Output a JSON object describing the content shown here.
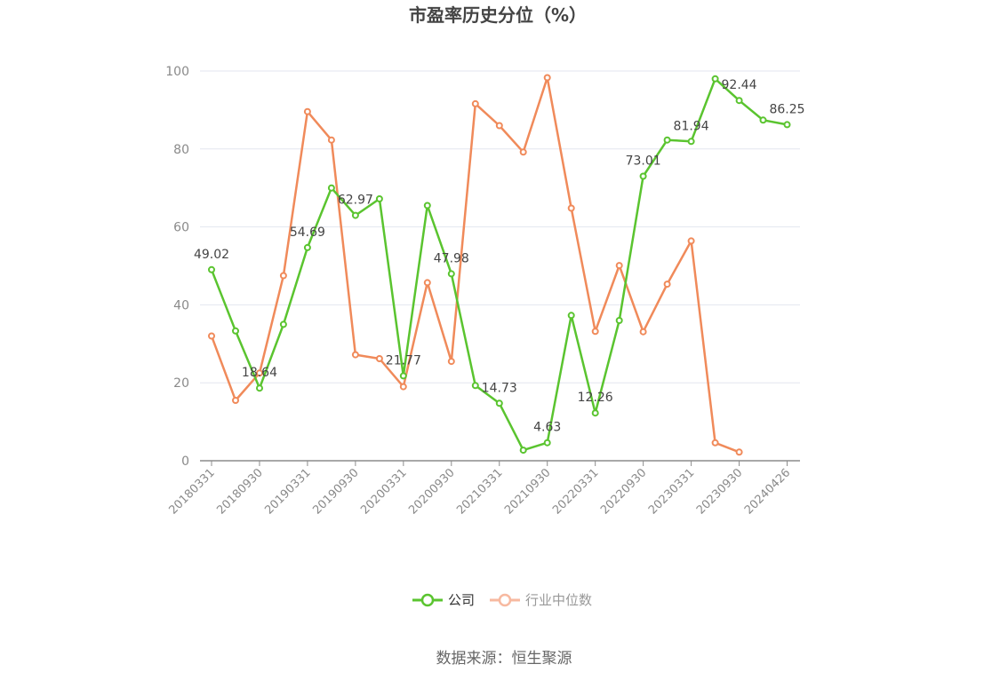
{
  "chart_data": {
    "type": "line",
    "title": "市盈率历史分位（%）",
    "xlabel": "",
    "ylabel": "",
    "ylim": [
      0,
      100
    ],
    "yticks": [
      0,
      20,
      40,
      60,
      80,
      100
    ],
    "grid": true,
    "legend_position": "bottom-center",
    "x": [
      "20180331",
      "20180630",
      "20180930",
      "20181231",
      "20190331",
      "20190630",
      "20190930",
      "20191231",
      "20200331",
      "20200630",
      "20200930",
      "20201231",
      "20210331",
      "20210630",
      "20210930",
      "20211231",
      "20220331",
      "20220630",
      "20220930",
      "20221231",
      "20230331",
      "20230630",
      "20230930",
      "20231231",
      "20240426"
    ],
    "x_tick_labels": [
      "20180331",
      "20180930",
      "20190331",
      "20190930",
      "20200331",
      "20200930",
      "20210331",
      "20210930",
      "20220331",
      "20220930",
      "20230331",
      "20230930",
      "20240426"
    ],
    "series": [
      {
        "name": "公司",
        "color": "#5ac42f",
        "values": [
          49.02,
          33.3,
          18.64,
          35.0,
          54.69,
          70.0,
          62.97,
          67.2,
          21.77,
          65.5,
          47.98,
          19.3,
          14.73,
          2.7,
          4.63,
          37.3,
          12.26,
          36.0,
          73.01,
          82.3,
          81.94,
          98.0,
          92.44,
          87.4,
          86.25
        ]
      },
      {
        "name": "行业中位数",
        "color": "#f08a5a",
        "values": [
          32.0,
          15.5,
          22.5,
          47.5,
          89.6,
          82.3,
          27.2,
          26.2,
          19.0,
          45.7,
          25.5,
          91.6,
          86.0,
          79.2,
          98.3,
          64.8,
          33.2,
          50.1,
          33.1,
          45.3,
          56.4,
          4.6,
          2.2,
          null,
          null
        ]
      }
    ],
    "data_labels": [
      {
        "series": 0,
        "index": 0,
        "text": "49.02"
      },
      {
        "series": 0,
        "index": 2,
        "text": "18.64"
      },
      {
        "series": 0,
        "index": 4,
        "text": "54.69"
      },
      {
        "series": 0,
        "index": 6,
        "text": "62.97"
      },
      {
        "series": 0,
        "index": 8,
        "text": "21.77"
      },
      {
        "series": 0,
        "index": 10,
        "text": "47.98"
      },
      {
        "series": 0,
        "index": 12,
        "text": "14.73"
      },
      {
        "series": 0,
        "index": 14,
        "text": "4.63"
      },
      {
        "series": 0,
        "index": 16,
        "text": "12.26"
      },
      {
        "series": 0,
        "index": 18,
        "text": "73.01"
      },
      {
        "series": 0,
        "index": 20,
        "text": "81.94"
      },
      {
        "series": 0,
        "index": 22,
        "text": "92.44"
      },
      {
        "series": 0,
        "index": 24,
        "text": "86.25"
      }
    ]
  },
  "legend": {
    "items": [
      {
        "label": "公司",
        "color": "#5ac42f",
        "active": true
      },
      {
        "label": "行业中位数",
        "color": "#f7b9a0",
        "active": false
      }
    ]
  },
  "source_text": "数据来源：恒生聚源"
}
